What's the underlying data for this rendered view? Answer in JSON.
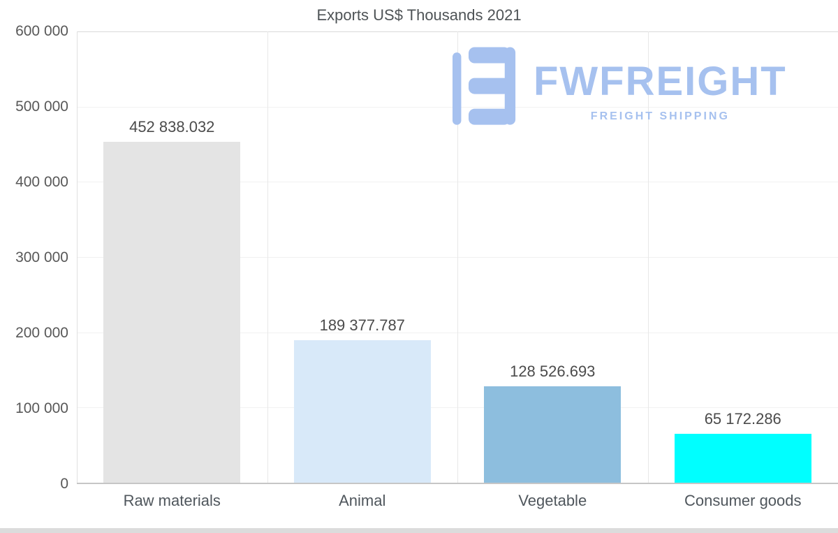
{
  "chart_data": {
    "type": "bar",
    "title": "Exports US$ Thousands 2021",
    "categories": [
      "Raw materials",
      "Animal",
      "Vegetable",
      "Consumer goods"
    ],
    "values": [
      452838.032,
      189377.787,
      128526.693,
      65172.286
    ],
    "value_labels": [
      "452 838.032",
      "189 377.787",
      "128 526.693",
      "65 172.286"
    ],
    "bar_colors": [
      "#e4e4e4",
      "#d8e9f9",
      "#8dbede",
      "#00ffff"
    ],
    "ylim": [
      0,
      600000
    ],
    "ytick_labels": [
      "600 000",
      "500 000",
      "400 000",
      "300 000",
      "200 000",
      "100 000",
      "0"
    ],
    "xlabel": "",
    "ylabel": "",
    "grid": true,
    "legend": "none"
  },
  "watermark": {
    "brand": "FWFREIGHT",
    "tagline": "FREIGHT SHIPPING",
    "color": "#a6c1ef"
  }
}
